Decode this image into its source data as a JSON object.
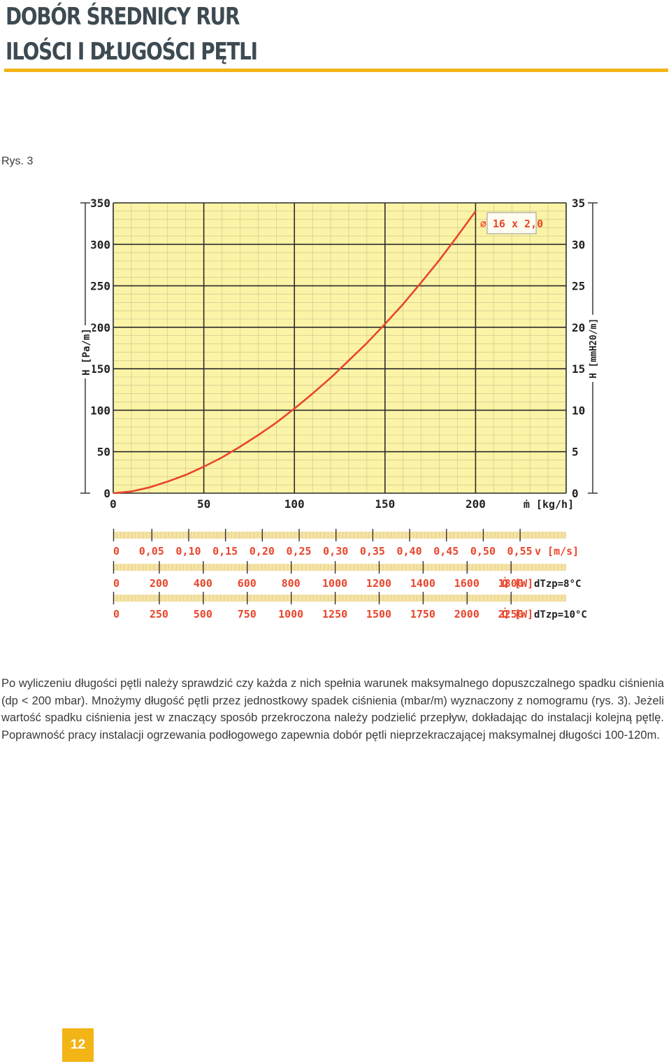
{
  "header": {
    "title_line1": "DOBÓR ŚREDNICY RUR",
    "title_line2": "ILOŚCI I DŁUGOŚCI PĘTLI"
  },
  "figure_label": "Rys. 3",
  "chart_data": {
    "type": "line",
    "title": "",
    "xlabel": "ṁ [kg/h]",
    "ylabel": "H [Pa/m]",
    "y2label": "H [mmH20/m]",
    "xlim": [
      0,
      250
    ],
    "ylim": [
      0,
      350
    ],
    "y2lim": [
      0,
      35
    ],
    "x_ticks": [
      0,
      50,
      100,
      150,
      200
    ],
    "y_ticks": [
      0,
      50,
      100,
      150,
      200,
      250,
      300,
      350
    ],
    "y2_ticks": [
      0,
      5,
      10,
      15,
      20,
      25,
      30,
      35
    ],
    "grid": true,
    "annotation": "⌀ 16 x 2,0",
    "series": [
      {
        "x": [
          0,
          10,
          20,
          30,
          40,
          50,
          60,
          70,
          80,
          90,
          100,
          110,
          120,
          130,
          140,
          150,
          160,
          170,
          180,
          190,
          200
        ],
        "y": [
          0,
          2,
          7,
          14,
          22,
          32,
          43,
          56,
          70,
          85,
          102,
          120,
          139,
          160,
          181,
          204,
          228,
          254,
          281,
          310,
          340
        ],
        "color": "#e8452c"
      }
    ],
    "scales": [
      {
        "labels": [
          "0",
          "0,05",
          "0,10",
          "0,15",
          "0,20",
          "0,25",
          "0,30",
          "0,35",
          "0,40",
          "0,45",
          "0,50",
          "0,55"
        ],
        "unit_label": "v [m/s]",
        "condition_label": ""
      },
      {
        "labels": [
          "0",
          "200",
          "400",
          "600",
          "800",
          "1000",
          "1200",
          "1400",
          "1600",
          "1800"
        ],
        "unit_label": "Q̇ [W]",
        "condition_label": "dTzp=8°C"
      },
      {
        "labels": [
          "0",
          "250",
          "500",
          "750",
          "1000",
          "1250",
          "1500",
          "1750",
          "2000",
          "2250"
        ],
        "unit_label": "Q̇ [W]",
        "condition_label": "dTzp=10°C"
      }
    ]
  },
  "body_text": "Po wyliczeniu długości pętli należy sprawdzić czy każda z nich spełnia warunek maksymalnego dopuszczalnego spadku ciśnienia (dp < 200 mbar). Mnożymy długość pętli przez jednostkowy spadek ciśnienia (mbar/m) wyznaczony z nomogramu (rys. 3). Jeżeli wartość spadku ciśnienia jest w znaczący sposób przekroczona należy podzielić przepływ, dokładając do instalacji kolejną pętlę. Poprawność pracy instalacji ogrzewania podłogowego zapewnia dobór pętli nieprzekraczającej maksymalnej długości 100-120m.",
  "page_number": "12",
  "colors": {
    "accent": "#f3b416",
    "plot_bg": "#fbf3a6",
    "curve": "#e8452c",
    "scale_band": "#f7e3a0"
  }
}
